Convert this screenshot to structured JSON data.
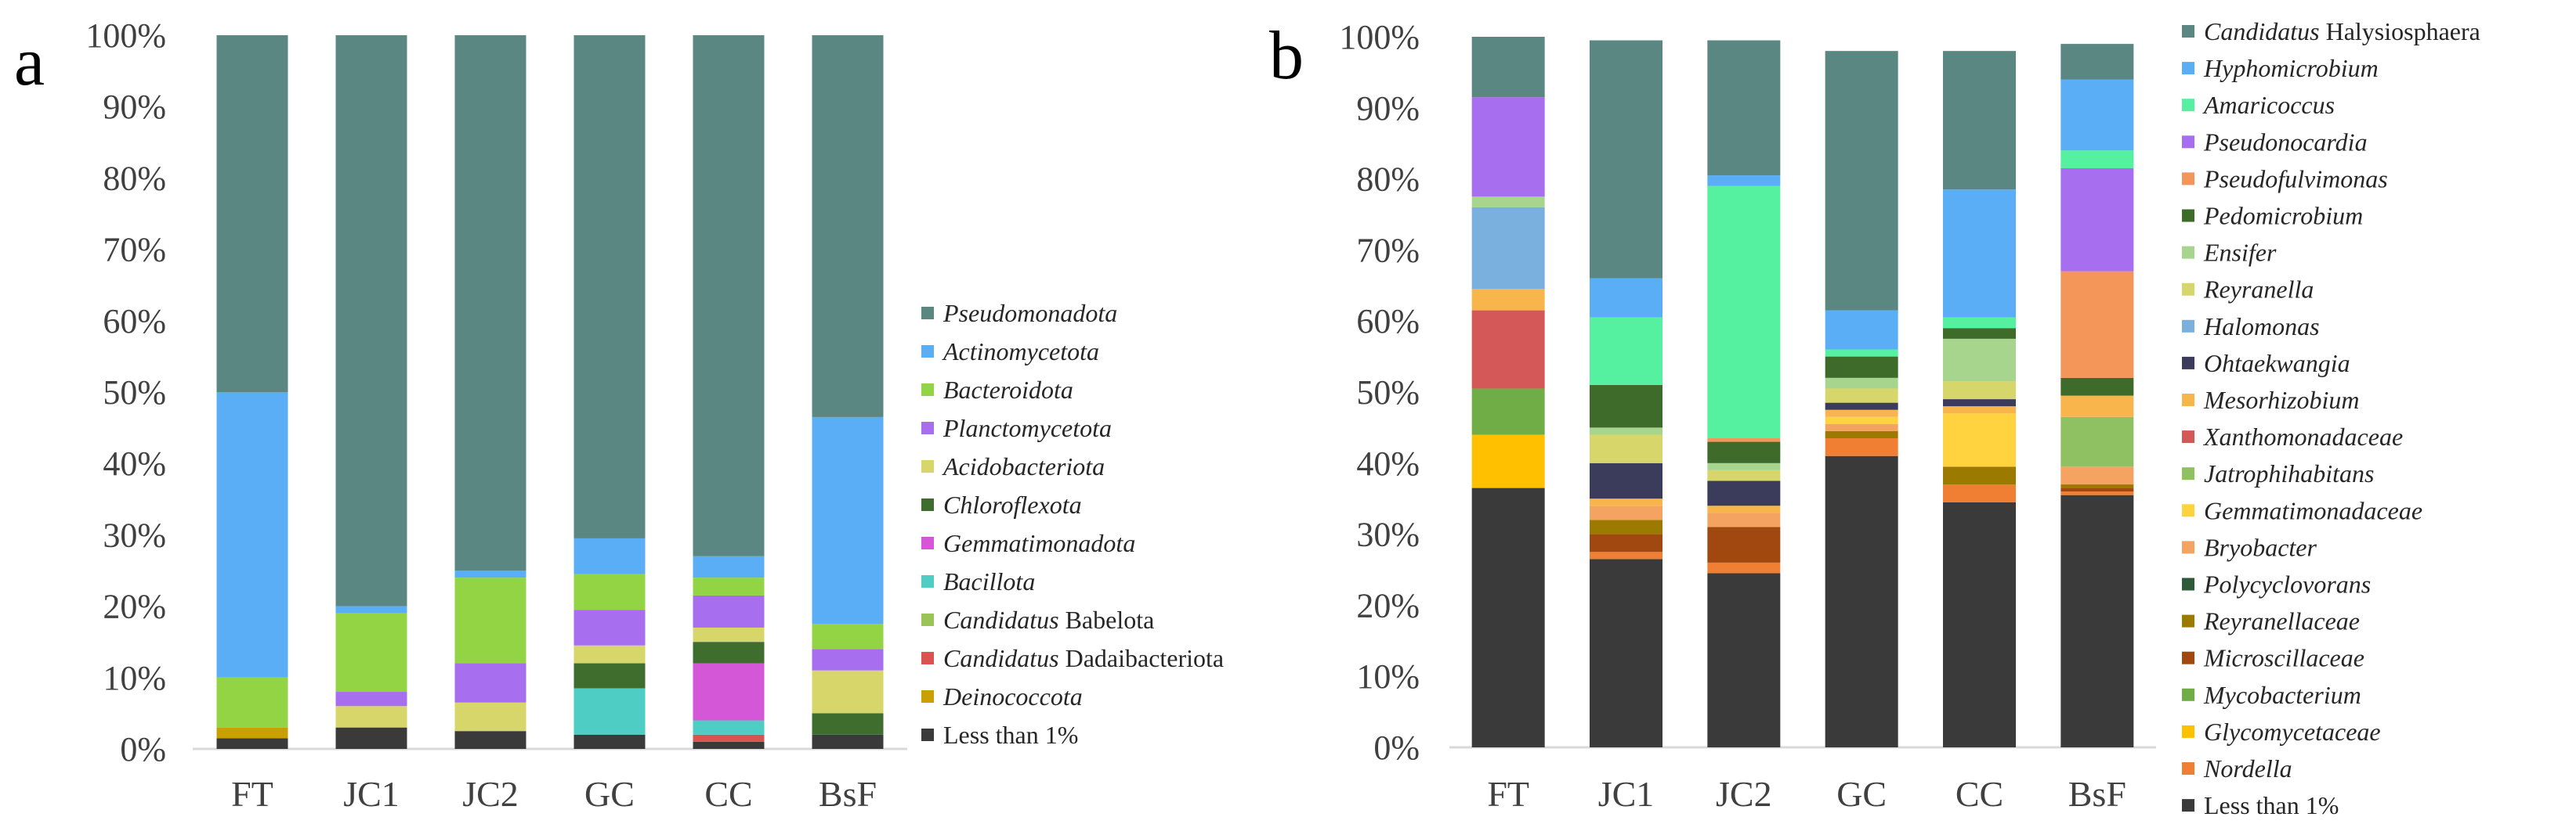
{
  "figure": {
    "panels": [
      "a",
      "b"
    ]
  },
  "colors": {
    "axis": "#d9d9d9",
    "text": "#404040"
  },
  "chart_data": [
    {
      "type": "bar",
      "stacked": true,
      "panel_label": "a",
      "title": "",
      "xlabel": "",
      "ylabel": "",
      "ylim": [
        0,
        100
      ],
      "yticks": [
        "0%",
        "10%",
        "20%",
        "30%",
        "40%",
        "50%",
        "60%",
        "70%",
        "80%",
        "90%",
        "100%"
      ],
      "grid": false,
      "legend_position": "right",
      "categories": [
        "FT",
        "JC1",
        "JC2",
        "GC",
        "CC",
        "BsF"
      ],
      "series": [
        {
          "name": "Less than 1%",
          "color": "#3a3a3a",
          "values": [
            1.5,
            3,
            2.5,
            2,
            1,
            2
          ]
        },
        {
          "name": "Deinococcota",
          "italic": true,
          "color": "#c9a000",
          "values": [
            1.5,
            0,
            0,
            0,
            0,
            0
          ]
        },
        {
          "name": "Candidatus Dadaibacteriota",
          "prefix": "Candidatus",
          "rest": " Dadaibacteriota",
          "color": "#d9534f",
          "values": [
            0,
            0,
            0,
            0,
            1,
            0
          ]
        },
        {
          "name": "Candidatus Babelota",
          "prefix": "Candidatus",
          "rest": " Babelota",
          "color": "#9bc456",
          "values": [
            0,
            0,
            0,
            0,
            0,
            0
          ]
        },
        {
          "name": "Bacillota",
          "italic": true,
          "color": "#4ecdc4",
          "values": [
            0,
            0,
            0,
            6.5,
            2,
            0
          ]
        },
        {
          "name": "Gemmatimonadota",
          "italic": true,
          "color": "#d357d6",
          "values": [
            0,
            0,
            0,
            0,
            8,
            0
          ]
        },
        {
          "name": "Chloroflexota",
          "italic": true,
          "color": "#3f6d2e",
          "values": [
            0,
            0,
            0,
            3.5,
            3,
            3
          ]
        },
        {
          "name": "Acidobacteriota",
          "italic": true,
          "color": "#d6d66a",
          "values": [
            0,
            3,
            4,
            2.5,
            2,
            6
          ]
        },
        {
          "name": "Planctomycetota",
          "italic": true,
          "color": "#a86ef0",
          "values": [
            0,
            2,
            5.5,
            5,
            4.5,
            3
          ]
        },
        {
          "name": "Bacteroidota",
          "italic": true,
          "color": "#93d444",
          "values": [
            7,
            11,
            12,
            5,
            2.5,
            3.5
          ]
        },
        {
          "name": "Actinomycetota",
          "italic": true,
          "color": "#5aaef5",
          "values": [
            40,
            1,
            1,
            5,
            3,
            29
          ]
        },
        {
          "name": "Pseudomonadota",
          "italic": true,
          "color": "#5b8783",
          "values": [
            50,
            80,
            75,
            70.5,
            73,
            53.5
          ]
        }
      ]
    },
    {
      "type": "bar",
      "stacked": true,
      "panel_label": "b",
      "title": "",
      "xlabel": "",
      "ylabel": "",
      "ylim": [
        0,
        100
      ],
      "yticks": [
        "0%",
        "10%",
        "20%",
        "30%",
        "40%",
        "50%",
        "60%",
        "70%",
        "80%",
        "90%",
        "100%"
      ],
      "grid": false,
      "legend_position": "right",
      "categories": [
        "FT",
        "JC1",
        "JC2",
        "GC",
        "CC",
        "BsF"
      ],
      "series": [
        {
          "name": "Less than 1%",
          "color": "#3a3a3a",
          "values": [
            36.5,
            26.5,
            24.5,
            41,
            34.5,
            35.5
          ]
        },
        {
          "name": "Nordella",
          "italic": true,
          "color": "#f07e33",
          "values": [
            0,
            1,
            1.5,
            2.5,
            2.5,
            0.5
          ]
        },
        {
          "name": "Glycomycetaceae",
          "italic": true,
          "color": "#ffc000",
          "values": [
            7.5,
            0,
            0,
            0,
            0,
            0
          ]
        },
        {
          "name": "Mycobacterium",
          "italic": true,
          "color": "#70ad47",
          "values": [
            6.5,
            0,
            0,
            0,
            0,
            0
          ]
        },
        {
          "name": "Microscillaceae",
          "italic": true,
          "color": "#a0480f",
          "values": [
            0,
            2.5,
            5,
            0,
            0,
            0.5
          ]
        },
        {
          "name": "Reyranellaceae",
          "italic": true,
          "color": "#9c7a00",
          "values": [
            0,
            2,
            0,
            1,
            2.5,
            0.5
          ]
        },
        {
          "name": "Polycyclovorans",
          "italic": true,
          "color": "#2f5a3a",
          "values": [
            0,
            0,
            0,
            0,
            0,
            0
          ]
        },
        {
          "name": "Bryobacter",
          "italic": true,
          "color": "#f4a460",
          "values": [
            0,
            2,
            2,
            1,
            0,
            2.5
          ]
        },
        {
          "name": "Gemmatimonadaceae",
          "italic": true,
          "color": "#ffd23f",
          "values": [
            0,
            0,
            0,
            1,
            7.5,
            0
          ]
        },
        {
          "name": "Jatrophihabitans",
          "italic": true,
          "color": "#8fc062",
          "values": [
            0,
            0,
            0,
            0,
            0,
            7
          ]
        },
        {
          "name": "Xanthomonadaceae",
          "italic": true,
          "color": "#d45858",
          "values": [
            11,
            0,
            0,
            0,
            0,
            0
          ]
        },
        {
          "name": "Mesorhizobium",
          "italic": true,
          "color": "#f8b54c",
          "values": [
            3,
            1,
            1,
            1,
            1,
            3
          ]
        },
        {
          "name": "Ohtaekwangia",
          "italic": true,
          "color": "#3b3b5c",
          "values": [
            0,
            5,
            3.5,
            1,
            1,
            0
          ]
        },
        {
          "name": "Halomonas",
          "italic": true,
          "color": "#79b0dd",
          "values": [
            11.5,
            0,
            0,
            0,
            0,
            0
          ]
        },
        {
          "name": "Reyranella",
          "italic": true,
          "color": "#d7d66a",
          "values": [
            0,
            4,
            1.5,
            2,
            2.5,
            0
          ]
        },
        {
          "name": "Ensifer",
          "italic": true,
          "color": "#a8d58e",
          "values": [
            1.5,
            1,
            1,
            1.5,
            6,
            0
          ]
        },
        {
          "name": "Pedomicrobium",
          "italic": true,
          "color": "#3e6b2a",
          "values": [
            0,
            6,
            3,
            3,
            1.5,
            2.5
          ]
        },
        {
          "name": "Pseudofulvimonas",
          "italic": true,
          "color": "#f4955a",
          "values": [
            0,
            0,
            0.5,
            0,
            0,
            15
          ]
        },
        {
          "name": "Pseudonocardia",
          "italic": true,
          "color": "#a86ef0",
          "values": [
            14,
            0,
            0,
            0,
            0,
            14.5
          ]
        },
        {
          "name": "Amaricoccus",
          "italic": true,
          "color": "#55f0a0",
          "values": [
            0,
            9.5,
            35.5,
            1,
            1.5,
            2.5
          ]
        },
        {
          "name": "Hyphomicrobium",
          "italic": true,
          "color": "#5aaef5",
          "values": [
            0,
            5.5,
            1.5,
            5.5,
            18,
            10
          ]
        },
        {
          "name": "Candidatus Halysiosphaera",
          "prefix": "Candidatus",
          "rest": " Halysiosphaera",
          "color": "#5b8783",
          "values": [
            8.5,
            33.5,
            19,
            36.5,
            19.5,
            5
          ]
        }
      ]
    }
  ]
}
